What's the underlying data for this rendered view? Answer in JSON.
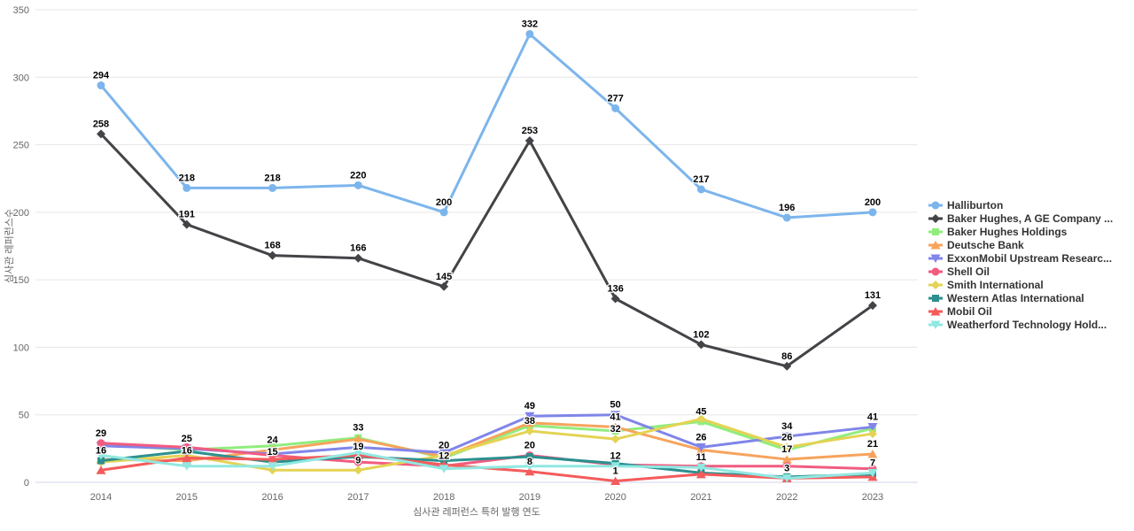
{
  "chart_data": {
    "type": "line",
    "title": "",
    "xlabel": "심사관 레퍼런스 특허 발행 연도",
    "ylabel": "심사관 레퍼런스수",
    "x": [
      2014,
      2015,
      2016,
      2017,
      2018,
      2019,
      2020,
      2021,
      2022,
      2023
    ],
    "ylim": [
      0,
      350
    ],
    "yticks": [
      0,
      50,
      100,
      150,
      200,
      250,
      300,
      350
    ],
    "grid": true,
    "legend_position": "right",
    "series": [
      {
        "name": "Halliburton",
        "color": "#7cb5ec",
        "marker": "circle",
        "values": [
          294,
          218,
          218,
          220,
          200,
          332,
          277,
          217,
          196,
          200
        ],
        "labels": [
          294,
          218,
          218,
          220,
          200,
          332,
          277,
          217,
          196,
          200
        ]
      },
      {
        "name": "Baker Hughes, A GE Company ...",
        "color": "#434348",
        "marker": "diamond",
        "values": [
          258,
          191,
          168,
          166,
          145,
          253,
          136,
          102,
          86,
          131
        ],
        "labels": [
          258,
          191,
          168,
          166,
          145,
          253,
          136,
          102,
          86,
          131
        ]
      },
      {
        "name": "Baker Hughes Holdings",
        "color": "#90ed7d",
        "marker": "square",
        "values": [
          28,
          24,
          27,
          33,
          18,
          42,
          38,
          45,
          24,
          40
        ],
        "labels": [
          null,
          null,
          null,
          33,
          null,
          null,
          null,
          45,
          null,
          null
        ]
      },
      {
        "name": "Deutsche Bank",
        "color": "#f7a35c",
        "marker": "triangle",
        "values": [
          17,
          16,
          24,
          32,
          19,
          44,
          41,
          24,
          17,
          21
        ],
        "labels": [
          null,
          16,
          24,
          null,
          null,
          null,
          41,
          null,
          17,
          21
        ]
      },
      {
        "name": "ExxonMobil Upstream Researc...",
        "color": "#8085e9",
        "marker": "triangle-down",
        "values": [
          27,
          25,
          21,
          26,
          22,
          49,
          50,
          26,
          34,
          41
        ],
        "labels": [
          null,
          25,
          null,
          null,
          null,
          49,
          50,
          26,
          34,
          41
        ]
      },
      {
        "name": "Shell Oil",
        "color": "#f15c80",
        "marker": "circle",
        "values": [
          29,
          26,
          20,
          15,
          12,
          20,
          13,
          12,
          12,
          10
        ],
        "labels": [
          29,
          null,
          null,
          null,
          12,
          20,
          null,
          null,
          null,
          null
        ]
      },
      {
        "name": "Smith International",
        "color": "#e4d354",
        "marker": "diamond",
        "values": [
          15,
          20,
          9,
          9,
          20,
          38,
          32,
          47,
          26,
          36
        ],
        "labels": [
          null,
          null,
          null,
          9,
          20,
          38,
          32,
          null,
          26,
          null
        ]
      },
      {
        "name": "Western Atlas International",
        "color": "#2b908f",
        "marker": "square",
        "values": [
          16,
          23,
          15,
          19,
          16,
          19,
          14,
          7,
          4,
          6
        ],
        "labels": [
          16,
          null,
          15,
          19,
          null,
          null,
          null,
          null,
          null,
          null
        ]
      },
      {
        "name": "Mobil Oil",
        "color": "#f45b5b",
        "marker": "triangle",
        "values": [
          9,
          18,
          17,
          20,
          13,
          8,
          1,
          6,
          3,
          4
        ],
        "labels": [
          null,
          null,
          null,
          null,
          null,
          8,
          1,
          null,
          null,
          null
        ]
      },
      {
        "name": "Weatherford Technology Hold...",
        "color": "#91e8e1",
        "marker": "triangle-down",
        "values": [
          20,
          12,
          12,
          22,
          10,
          12,
          12,
          11,
          3,
          7
        ],
        "labels": [
          null,
          null,
          null,
          null,
          null,
          null,
          12,
          11,
          3,
          7
        ]
      }
    ]
  }
}
